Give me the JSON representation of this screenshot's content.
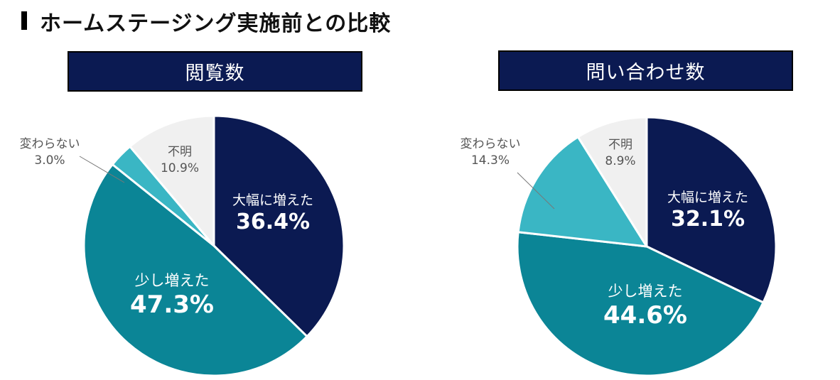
{
  "page_title": "ホームステージング実施前との比較",
  "colors": {
    "dark_navy": "#0b1a52",
    "teal": "#0b8596",
    "light_teal": "#3ab6c4",
    "light_gray": "#f0f0f0",
    "header_bg": "#0b1a52"
  },
  "chart_data": [
    {
      "type": "pie",
      "title": "閲覧数",
      "categories": [
        "大幅に増えた",
        "少し増えた",
        "変わらない",
        "不明"
      ],
      "values": [
        36.4,
        47.3,
        3.0,
        10.9
      ],
      "value_labels": [
        "36.4%",
        "47.3%",
        "3.0%",
        "10.9%"
      ],
      "colors": [
        "#0b1a52",
        "#0b8596",
        "#3ab6c4",
        "#f0f0f0"
      ]
    },
    {
      "type": "pie",
      "title": "問い合わせ数",
      "categories": [
        "大幅に増えた",
        "少し増えた",
        "変わらない",
        "不明"
      ],
      "values": [
        32.1,
        44.6,
        14.3,
        8.9
      ],
      "value_labels": [
        "32.1%",
        "44.6%",
        "14.3%",
        "8.9%"
      ],
      "colors": [
        "#0b1a52",
        "#0b8596",
        "#3ab6c4",
        "#f0f0f0"
      ]
    }
  ]
}
